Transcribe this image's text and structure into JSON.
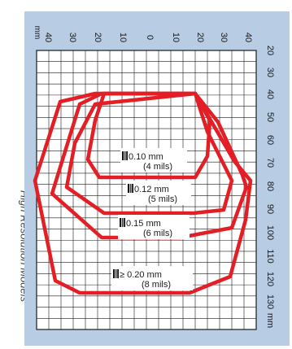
{
  "figure": {
    "side_title": "High Resolution Models",
    "vertical_axis": {
      "unit": "mm",
      "ticks": [
        "20",
        "30",
        "40",
        "50",
        "60",
        "70",
        "80",
        "90",
        "100",
        "110",
        "120",
        "130"
      ]
    },
    "horizontal_axis": {
      "unit": "mm",
      "ticks": [
        "40",
        "30",
        "20",
        "10",
        "0",
        "10",
        "20",
        "30",
        "40"
      ]
    },
    "zones": [
      {
        "label": "0.10 mm",
        "sub": "(4 mils)"
      },
      {
        "label": "0.12 mm",
        "sub": "(5 mils)"
      },
      {
        "label": "0.15 mm",
        "sub": "(6 mils)"
      },
      {
        "label": "≥ 0.20 mm",
        "sub": "(8 mils)"
      }
    ],
    "colors": {
      "background": "#b8cce4",
      "grid": "#1a1a1a",
      "zone": "#e31e24"
    }
  }
}
